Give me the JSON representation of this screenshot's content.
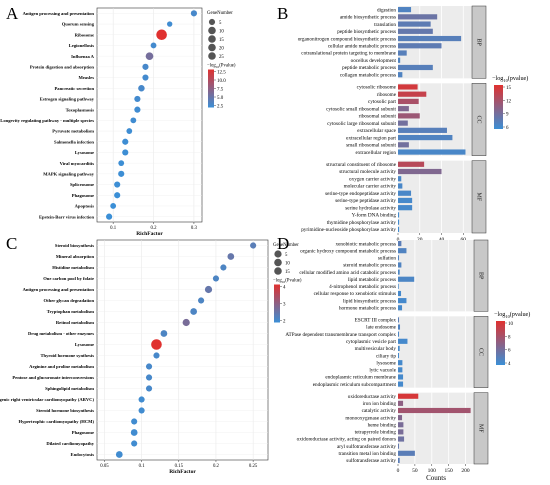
{
  "panels": [
    {
      "label": "A",
      "chart_data": {
        "type": "scatter",
        "xlabel": "RichFactor",
        "ylabel": "",
        "xticks": [
          0.1,
          0.2,
          0.3
        ],
        "xlim": [
          0.06,
          0.32
        ],
        "size_legend_title": "GeneNumber",
        "size_legend": [
          5,
          10,
          15,
          20,
          25
        ],
        "color_legend_title": "-log10(Pvalue)",
        "color_legend_ticks": [
          "12.5",
          "10.0",
          "7.5",
          "5.0",
          "2.5"
        ],
        "color_range": [
          2.5,
          12.5
        ],
        "color_low": "#3b8fd6",
        "color_high": "#e0312f",
        "categories": [
          "Antigen processing and presentation",
          "Quorum sensing",
          "Ribosome",
          "Legionellosis",
          "Influenza A",
          "Protein digestion and absorption",
          "Measles",
          "Pancreatic secretion",
          "Estrogen signaling pathway",
          "Toxoplasmosis",
          "Longevity regulating pathway - multiple species",
          "Pyruvate metabolism",
          "Salmonella infection",
          "Lysosome",
          "Viral myocarditis",
          "MAPK signaling pathway",
          "Spliceosome",
          "Phagosome",
          "Apoptosis",
          "Epstein-Barr virus infection"
        ],
        "x": [
          0.3,
          0.24,
          0.22,
          0.2,
          0.19,
          0.18,
          0.18,
          0.17,
          0.16,
          0.16,
          0.15,
          0.14,
          0.13,
          0.13,
          0.12,
          0.12,
          0.11,
          0.11,
          0.1,
          0.09
        ],
        "size": [
          5,
          3,
          25,
          4,
          10,
          5,
          5,
          6,
          5,
          5,
          4,
          4,
          5,
          5,
          4,
          5,
          5,
          5,
          4,
          5
        ],
        "color": [
          3.2,
          2.8,
          12.5,
          3.0,
          6.0,
          3.2,
          3.0,
          3.2,
          3.0,
          2.8,
          2.8,
          2.7,
          2.7,
          2.6,
          2.6,
          2.6,
          2.6,
          2.5,
          2.5,
          2.5
        ]
      }
    },
    {
      "label": "B",
      "chart_data": {
        "type": "bar",
        "orientation": "horizontal",
        "xlabel": "Counts",
        "xticks": [
          0,
          20,
          40,
          60
        ],
        "xlim": [
          0,
          68
        ],
        "legend_title": "-log10(pvalue)",
        "legend_ticks": [
          "15",
          "12",
          "9",
          "6"
        ],
        "color_range": [
          4,
          16
        ],
        "color_low": "#3b8fd6",
        "color_high": "#e0312f",
        "groups": [
          {
            "name": "BP",
            "categories": [
              "digestion",
              "amide biosynthetic process",
              "translation",
              "peptide biosynthetic process",
              "organonitrogen compound biosynthetic process",
              "cellular amide metabolic process",
              "cotranslational protein targeting to membrane",
              "oocellus development",
              "peptide metabolic process",
              "collagen metabolic process"
            ],
            "values": [
              12,
              36,
              30,
              32,
              58,
              40,
              8,
              2,
              32,
              4
            ],
            "color": [
              5.5,
              7.5,
              6.5,
              7.0,
              6.0,
              6.5,
              6.0,
              5.5,
              6.0,
              5.5
            ]
          },
          {
            "name": "CC",
            "categories": [
              "cytosolic ribosome",
              "ribosome",
              "cytosolic part",
              "cytosolic small ribosomal subunit",
              "ribosomal subunit",
              "cytosolic large ribosomal subunit",
              "extracellular space",
              "extracellular region part",
              "small ribosomal subunit",
              "extracellular region"
            ],
            "values": [
              18,
              26,
              19,
              10,
              20,
              9,
              45,
              50,
              10,
              62
            ],
            "color": [
              15,
              14,
              12,
              9,
              11,
              8,
              6,
              5.5,
              8,
              5
            ]
          },
          {
            "name": "MF",
            "categories": [
              "structural constituent of ribosome",
              "structural molecule activity",
              "oxygen carrier activity",
              "molecular carrier activity",
              "serine-type endopeptidase activity",
              "serine-type peptidase activity",
              "serine hydrolase activity",
              "Y-form DNA binding",
              "thymidine phosphorylase activity",
              "pyrimidine-nucleoside phosphorylase activity"
            ],
            "values": [
              24,
              40,
              3,
              4,
              12,
              13,
              13,
              1,
              1,
              1
            ],
            "color": [
              13,
              9,
              5,
              5,
              5,
              4.8,
              4.8,
              4.5,
              4.5,
              4.5
            ]
          }
        ]
      }
    },
    {
      "label": "C",
      "chart_data": {
        "type": "scatter",
        "xlabel": "RichFactor",
        "ylabel": "",
        "xticks": [
          0.05,
          0.1,
          0.15,
          0.2,
          0.25
        ],
        "xlim": [
          0.04,
          0.27
        ],
        "size_legend_title": "GeneNumber",
        "size_legend": [
          5,
          10,
          15
        ],
        "color_legend_title": "-log10(Pvalue)",
        "color_legend_ticks": [
          "4",
          "3",
          "2"
        ],
        "color_range": [
          1.5,
          4.2
        ],
        "color_low": "#3b8fd6",
        "color_high": "#e0312f",
        "categories": [
          "Steroid biosynthesis",
          "Mineral absorption",
          "Histidine metabolism",
          "One carbon pool by folate",
          "Antigen processing and presentation",
          "Other glycan degradation",
          "Tryptophan metabolism",
          "Retinol metabolism",
          "Drug metabolism - other enzymes",
          "Lysosome",
          "Thyroid hormone synthesis",
          "Arginine and proline metabolism",
          "Pentose and glucuronate interconversions",
          "Sphingolipid metabolism",
          "Arrhythmogenic right ventricular cardiomyopathy (ARVC)",
          "Steroid hormone biosynthesis",
          "Hypertrophic cardiomyopathy (HCM)",
          "Phagosome",
          "Dilated cardiomyopathy",
          "Endocytosis"
        ],
        "x": [
          0.25,
          0.22,
          0.21,
          0.2,
          0.19,
          0.18,
          0.17,
          0.16,
          0.13,
          0.12,
          0.12,
          0.11,
          0.11,
          0.11,
          0.1,
          0.1,
          0.09,
          0.09,
          0.09,
          0.07
        ],
        "size": [
          3,
          4,
          3,
          3,
          5,
          3,
          4,
          5,
          4,
          15,
          3,
          3,
          3,
          3,
          3,
          3,
          3,
          4,
          3,
          4
        ],
        "color": [
          2.0,
          2.2,
          1.8,
          1.8,
          2.2,
          1.8,
          1.8,
          2.5,
          1.8,
          4.2,
          1.7,
          1.7,
          1.7,
          1.7,
          1.6,
          1.6,
          1.6,
          1.6,
          1.6,
          1.6
        ]
      }
    },
    {
      "label": "D",
      "chart_data": {
        "type": "bar",
        "orientation": "horizontal",
        "xlabel": "Counts",
        "xticks": [
          0,
          50,
          100,
          150,
          200
        ],
        "xlim": [
          0,
          225
        ],
        "legend_title": "-log10(pvalue)",
        "legend_ticks": [
          "10",
          "8",
          "6",
          "4"
        ],
        "color_range": [
          3,
          11
        ],
        "color_low": "#3b8fd6",
        "color_high": "#e0312f",
        "groups": [
          {
            "name": "BP",
            "categories": [
              "xenobiotic metabolic process",
              "organic hydroxy compound metabolic process",
              "sulfation",
              "steroid metabolic process",
              "cellular modified amino acid catabolic process",
              "lipid metabolic process",
              "4-nitrophenol metabolic process",
              "cellular response to xenobiotic stimulus",
              "lipid biosynthetic process",
              "hormone metabolic process"
            ],
            "values": [
              10,
              25,
              3,
              10,
              5,
              48,
              2,
              9,
              25,
              12
            ],
            "color": [
              4.5,
              4.0,
              4.0,
              4.0,
              3.8,
              3.8,
              3.5,
              3.5,
              3.5,
              3.5
            ]
          },
          {
            "name": "CC",
            "categories": [
              "ESCRT III complex",
              "late endosome",
              "ATPase dependent transmembrane transport complex",
              "cytoplasmic vesicle part",
              "multivesicular body",
              "ciliary tip",
              "lysosome",
              "lytic vacuole",
              "endoplasmic reticulum membrane",
              "endoplasmic reticulum subcompartment"
            ],
            "values": [
              3,
              6,
              3,
              28,
              5,
              3,
              13,
              13,
              15,
              15
            ],
            "color": [
              4.5,
              4.0,
              3.8,
              3.5,
              3.5,
              3.5,
              3.5,
              3.5,
              3.5,
              3.5
            ]
          },
          {
            "name": "MF",
            "categories": [
              "oxidoreductase activity",
              "iron ion binding",
              "catalytic activity",
              "monooxygenase activity",
              "heme binding",
              "tetrapyrrole binding",
              "oxidoreductase activity, acting on paired donors",
              "aryl sulfotransferase activity",
              "transition metal ion binding",
              "sulfotransferase activity"
            ],
            "values": [
              60,
              15,
              215,
              12,
              16,
              16,
              18,
              3,
              50,
              5
            ],
            "color": [
              10.5,
              7.0,
              8.0,
              6.5,
              6.0,
              6.0,
              5.5,
              5.0,
              4.5,
              4.5
            ]
          }
        ]
      }
    }
  ]
}
